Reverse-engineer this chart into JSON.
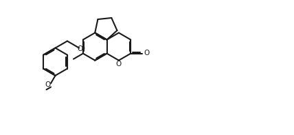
{
  "bg_color": "#ffffff",
  "line_color": "#1a1a1a",
  "line_width": 1.5,
  "figsize": [
    4.28,
    1.96
  ],
  "dpi": 100,
  "bl": 0.48,
  "xlim": [
    -0.3,
    9.8
  ],
  "ylim": [
    -0.5,
    4.2
  ]
}
